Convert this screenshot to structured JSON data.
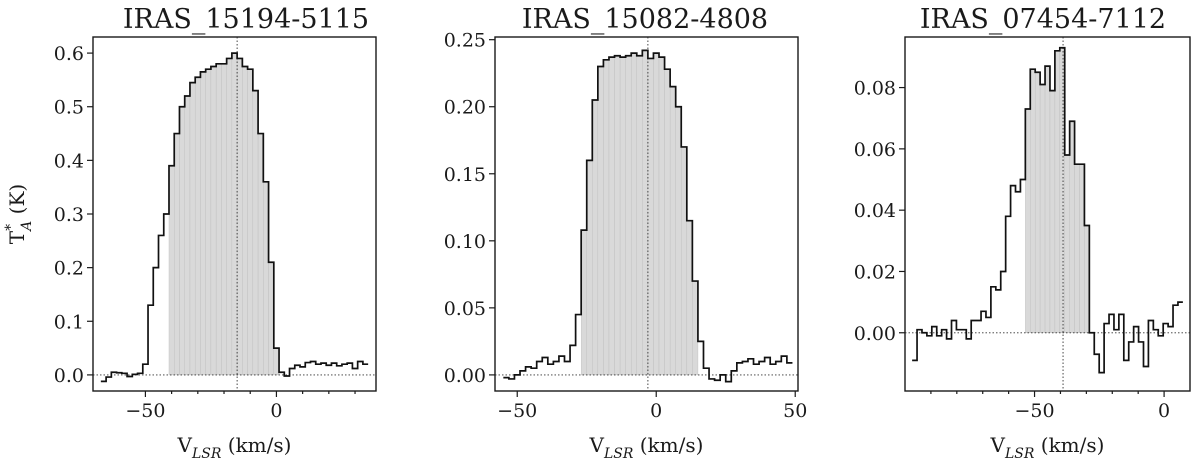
{
  "chart_data": [
    {
      "type": "line",
      "title": "IRAS_15194-5115",
      "xlabel": "V_LSR (km/s)",
      "ylabel": "T*_A (K)",
      "xlim": [
        -70,
        38
      ],
      "ylim": [
        -0.03,
        0.63
      ],
      "xticks": [
        -50,
        0
      ],
      "xtick_labels": [
        "−50",
        "0"
      ],
      "xminor": [
        -40,
        -30,
        -20,
        -10,
        10,
        20,
        30
      ],
      "yticks": [
        0.0,
        0.1,
        0.2,
        0.3,
        0.4,
        0.5,
        0.6
      ],
      "ytick_labels": [
        "0.0",
        "0.1",
        "0.2",
        "0.3",
        "0.4",
        "0.5",
        "0.6"
      ],
      "bin_width": 2.0,
      "fill_range": [
        -40,
        0
      ],
      "center_v": -15,
      "series": [
        {
          "x": [
            -66,
            -64,
            -62,
            -60,
            -58,
            -56,
            -54,
            -52,
            -50,
            -48,
            -46,
            -44,
            -42,
            -40,
            -38,
            -36,
            -34,
            -32,
            -30,
            -28,
            -26,
            -24,
            -22,
            -20,
            -18,
            -16,
            -14,
            -12,
            -10,
            -8,
            -6,
            -4,
            -2,
            0,
            2,
            4,
            6,
            8,
            10,
            12,
            14,
            16,
            18,
            20,
            22,
            24,
            26,
            28,
            30,
            32,
            34
          ],
          "y": [
            -0.012,
            -0.004,
            0.005,
            0.004,
            0.003,
            -0.003,
            0.001,
            0.003,
            0.02,
            0.13,
            0.2,
            0.26,
            0.3,
            0.39,
            0.45,
            0.5,
            0.52,
            0.545,
            0.555,
            0.565,
            0.57,
            0.575,
            0.58,
            0.58,
            0.59,
            0.6,
            0.59,
            0.575,
            0.57,
            0.53,
            0.45,
            0.36,
            0.21,
            0.05,
            0.005,
            -0.002,
            0.012,
            0.018,
            0.015,
            0.023,
            0.025,
            0.02,
            0.022,
            0.018,
            0.022,
            0.017,
            0.02,
            0.022,
            0.012,
            0.025,
            0.02
          ]
        }
      ]
    },
    {
      "type": "line",
      "title": "IRAS_15082-4808",
      "xlabel": "V_LSR (km/s)",
      "ylabel": "",
      "xlim": [
        -58,
        51
      ],
      "ylim": [
        -0.012,
        0.252
      ],
      "xticks": [
        -50,
        0,
        50
      ],
      "xtick_labels": [
        "−50",
        "0",
        "50"
      ],
      "xminor": [],
      "yticks": [
        0.0,
        0.05,
        0.1,
        0.15,
        0.2,
        0.25
      ],
      "ytick_labels": [
        "0.00",
        "0.05",
        "0.10",
        "0.15",
        "0.20",
        "0.25"
      ],
      "bin_width": 2.0,
      "fill_range": [
        -26,
        14
      ],
      "center_v": -3,
      "series": [
        {
          "x": [
            -54,
            -52,
            -50,
            -48,
            -46,
            -44,
            -42,
            -40,
            -38,
            -36,
            -34,
            -32,
            -30,
            -28,
            -26,
            -24,
            -22,
            -20,
            -18,
            -16,
            -14,
            -12,
            -10,
            -8,
            -6,
            -4,
            -2,
            0,
            2,
            4,
            6,
            8,
            10,
            12,
            14,
            16,
            18,
            20,
            22,
            24,
            26,
            28,
            30,
            32,
            34,
            36,
            38,
            40,
            42,
            44,
            46,
            48
          ],
          "y": [
            -0.002,
            -0.003,
            0.0,
            0.003,
            0.006,
            0.005,
            0.01,
            0.013,
            0.008,
            0.01,
            0.014,
            0.01,
            0.022,
            0.045,
            0.108,
            0.16,
            0.205,
            0.23,
            0.235,
            0.237,
            0.238,
            0.237,
            0.238,
            0.24,
            0.238,
            0.242,
            0.236,
            0.24,
            0.237,
            0.228,
            0.215,
            0.2,
            0.17,
            0.115,
            0.07,
            0.025,
            0.005,
            -0.003,
            -0.004,
            0.0,
            -0.005,
            0.003,
            0.009,
            0.01,
            0.012,
            0.008,
            0.01,
            0.013,
            0.008,
            0.01,
            0.014,
            0.009
          ]
        }
      ]
    },
    {
      "type": "line",
      "title": "IRAS_07454-7112",
      "xlabel": "V_LSR (km/s)",
      "ylabel": "",
      "xlim": [
        -100,
        10
      ],
      "ylim": [
        -0.019,
        0.0965
      ],
      "xticks": [
        -50,
        0
      ],
      "xtick_labels": [
        "−50",
        "0"
      ],
      "xminor": [
        -90,
        -80,
        -70,
        -60,
        -40,
        -30,
        -20,
        -10
      ],
      "yticks": [
        0.0,
        0.02,
        0.04,
        0.06,
        0.08
      ],
      "ytick_labels": [
        "0.00",
        "0.02",
        "0.04",
        "0.06",
        "0.08"
      ],
      "bin_width": 1.9,
      "fill_range": [
        -53,
        -27
      ],
      "center_v": -39,
      "series": [
        {
          "x": [
            -96.3,
            -94.4,
            -92.5,
            -90.6,
            -88.7,
            -86.8,
            -84.9,
            -83,
            -81.1,
            -79.2,
            -77.3,
            -75.4,
            -73.5,
            -71.6,
            -69.7,
            -67.8,
            -65.9,
            -64,
            -62.1,
            -60.2,
            -58.3,
            -56.4,
            -54.5,
            -52.6,
            -50.7,
            -48.8,
            -46.9,
            -45,
            -43.1,
            -41.2,
            -39.3,
            -37.4,
            -35.5,
            -33.6,
            -31.7,
            -29.8,
            -27.9,
            -26,
            -24.1,
            -22.2,
            -20.3,
            -18.4,
            -16.5,
            -14.6,
            -12.7,
            -10.8,
            -8.9,
            -7,
            -5.1,
            -3.2,
            -1.3,
            0.6,
            2.5,
            4.4,
            6.3
          ],
          "y": [
            -0.009,
            0.001,
            0.0,
            -0.001,
            0.002,
            -0.001,
            0.001,
            -0.002,
            0.004,
            0.001,
            0.001,
            -0.002,
            0.004,
            0.004,
            0.007,
            0.005,
            0.015,
            0.014,
            0.02,
            0.038,
            0.048,
            0.046,
            0.05,
            0.073,
            0.086,
            0.085,
            0.081,
            0.087,
            0.079,
            0.092,
            0.093,
            0.058,
            0.069,
            0.055,
            0.055,
            0.035,
            0.0,
            -0.007,
            -0.013,
            0.003,
            0.006,
            0.001,
            0.006,
            -0.009,
            -0.003,
            0.002,
            -0.003,
            -0.011,
            0.004,
            0.001,
            -0.001,
            0.003,
            0.002,
            0.009,
            0.01
          ]
        }
      ]
    }
  ]
}
